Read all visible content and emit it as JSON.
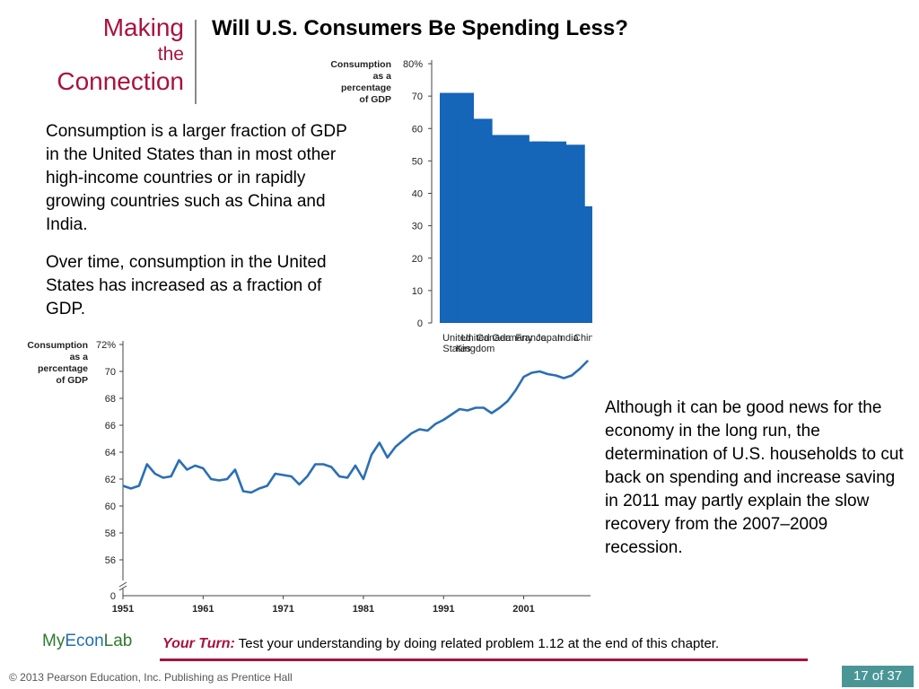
{
  "header": {
    "making": "Making",
    "the": "the",
    "connection": "Connection",
    "title": "Will U.S. Consumers Be Spending Less?"
  },
  "text": {
    "p1": "Consumption is a larger fraction of GDP in the United States than in most other high-income countries or in rapidly growing countries such as China and India.",
    "p2": "Over time, consumption in the United States has increased as a fraction of GDP.",
    "p3": "Although it can be good news for the economy in the long run, the determination of U.S. households to cut back on spending and increase saving in 2011 may partly explain the slow recovery from the 2007–2009 recession."
  },
  "footer": {
    "my": "My",
    "econ": "Econ",
    "lab": "Lab",
    "your_turn_label": "Your Turn:",
    "your_turn_text": "Test your understanding by doing related problem 1.12 at the end of this chapter.",
    "copyright": "© 2013 Pearson Education, Inc. Publishing as Prentice Hall",
    "page": "17 of 37"
  },
  "colors": {
    "accent": "#a8123e",
    "bar": "#1565b8",
    "line": "#2a6fb5",
    "page_badge": "#4a9696"
  },
  "chart_data": [
    {
      "type": "bar",
      "ylabel": [
        "Consumption",
        "as a",
        "percentage",
        "of GDP"
      ],
      "categories": [
        [
          "United",
          "States"
        ],
        [
          "United",
          "Kingdom"
        ],
        [
          "Canada"
        ],
        [
          "Germany"
        ],
        [
          "France"
        ],
        [
          "Japan"
        ],
        [
          "India"
        ],
        [
          "China"
        ]
      ],
      "values": [
        71,
        63,
        58,
        58,
        56,
        56,
        55,
        36
      ],
      "ylim": [
        0,
        80
      ],
      "yticks": [
        0,
        10,
        20,
        30,
        40,
        50,
        60,
        70,
        80
      ],
      "ytick_labels": [
        "0",
        "10",
        "20",
        "30",
        "40",
        "50",
        "60",
        "70",
        "80%"
      ],
      "grid": false
    },
    {
      "type": "line",
      "ylabel": [
        "Consumption",
        "as a",
        "percentage",
        "of GDP"
      ],
      "x": [
        1951,
        1952,
        1953,
        1954,
        1955,
        1956,
        1957,
        1958,
        1959,
        1960,
        1961,
        1962,
        1963,
        1964,
        1965,
        1966,
        1967,
        1968,
        1969,
        1970,
        1971,
        1972,
        1973,
        1974,
        1975,
        1976,
        1977,
        1978,
        1979,
        1980,
        1981,
        1982,
        1983,
        1984,
        1985,
        1986,
        1987,
        1988,
        1989,
        1990,
        1991,
        1992,
        1993,
        1994,
        1995,
        1996,
        1997,
        1998,
        1999,
        2000,
        2001,
        2002,
        2003,
        2004,
        2005,
        2006,
        2007,
        2008,
        2009
      ],
      "values": [
        61.5,
        61.3,
        61.5,
        63.1,
        62.4,
        62.1,
        62.2,
        63.4,
        62.7,
        63.0,
        62.8,
        62.0,
        61.9,
        62.0,
        62.7,
        61.1,
        61.0,
        61.3,
        61.5,
        62.4,
        62.3,
        62.2,
        61.6,
        62.2,
        63.1,
        63.1,
        62.9,
        62.2,
        62.1,
        63.0,
        62.0,
        63.8,
        64.7,
        63.6,
        64.4,
        64.9,
        65.4,
        65.7,
        65.6,
        66.1,
        66.4,
        66.8,
        67.2,
        67.1,
        67.3,
        67.3,
        66.9,
        67.3,
        67.8,
        68.6,
        69.6,
        69.9,
        70.0,
        69.8,
        69.7,
        69.5,
        69.7,
        70.2,
        70.8
      ],
      "xticks": [
        1951,
        1961,
        1971,
        1981,
        1991,
        2001
      ],
      "xtick_labels": [
        "1951",
        "1961",
        "1971",
        "1981",
        "1991",
        "2001"
      ],
      "yticks": [
        56,
        58,
        60,
        62,
        64,
        66,
        68,
        70,
        72
      ],
      "ytick_labels": [
        "56",
        "58",
        "60",
        "62",
        "64",
        "66",
        "68",
        "70",
        "72%"
      ],
      "y_zero_label": "0",
      "ylim": [
        55,
        72
      ],
      "axis_break": true,
      "grid": false
    }
  ]
}
